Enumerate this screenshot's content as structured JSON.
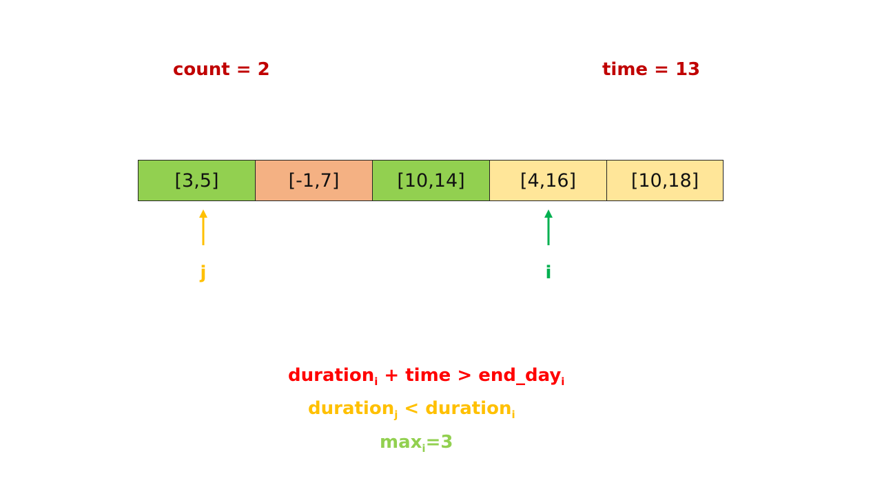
{
  "header": {
    "count_text": "count = 2",
    "time_text": "time = 13"
  },
  "colors": {
    "dark_red": "#c00000",
    "green_cell": "#92d050",
    "orange_cell": "#f4b183",
    "yellow_cell": "#ffe699",
    "pointer_j": "#ffc000",
    "pointer_i": "#00b050",
    "cond_red": "#ff0000",
    "cond_yellow": "#ffc000",
    "cond_green": "#92d050"
  },
  "array": [
    {
      "text": "[3,5]",
      "color": "#92d050"
    },
    {
      "text": "[-1,7]",
      "color": "#f4b183"
    },
    {
      "text": "[10,14]",
      "color": "#92d050"
    },
    {
      "text": "[4,16]",
      "color": "#ffe699"
    },
    {
      "text": "[10,18]",
      "color": "#ffe699"
    }
  ],
  "pointers": {
    "j": {
      "label": "j",
      "index": 0
    },
    "i": {
      "label": "i",
      "index": 3
    }
  },
  "conditions": {
    "line1": {
      "a": "duration",
      "a_sub": "i",
      "mid": " + time > end_day",
      "b_sub": "i"
    },
    "line2": {
      "a": "duration",
      "a_sub": "j",
      "mid": " < duration",
      "b_sub": "i"
    },
    "line3": {
      "a": "max",
      "a_sub": "i",
      "mid": "=3"
    }
  }
}
